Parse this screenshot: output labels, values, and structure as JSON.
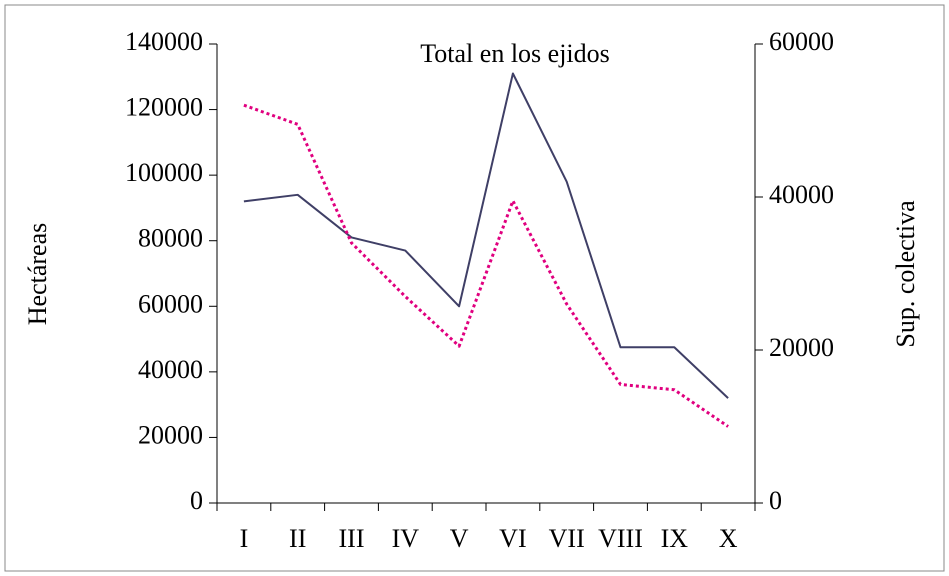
{
  "chart_data": {
    "type": "line",
    "title": "Total en los ejidos",
    "y_label": "Hectáreas",
    "y2_label": "Sup. colectiva",
    "categories": [
      "I",
      "II",
      "III",
      "IV",
      "V",
      "VI",
      "VII",
      "VIII",
      "IX",
      "X"
    ],
    "series": [
      {
        "color": "#3f3f66",
        "values": [
          92000,
          94000,
          81000,
          77000,
          60000,
          131000,
          98000,
          47500,
          47500,
          32000
        ]
      },
      {
        "color": "#e0007f",
        "axis": "y2",
        "dashed": true,
        "values": [
          52000,
          49500,
          34000,
          27000,
          20500,
          39500,
          26000,
          15500,
          14800,
          10000
        ]
      }
    ],
    "ylim": [
      0,
      140000
    ],
    "yticks": [
      0,
      20000,
      40000,
      60000,
      80000,
      100000,
      120000,
      140000
    ],
    "y2lim": [
      0,
      60000
    ],
    "y2ticks": [
      0,
      20000,
      40000,
      60000
    ]
  }
}
